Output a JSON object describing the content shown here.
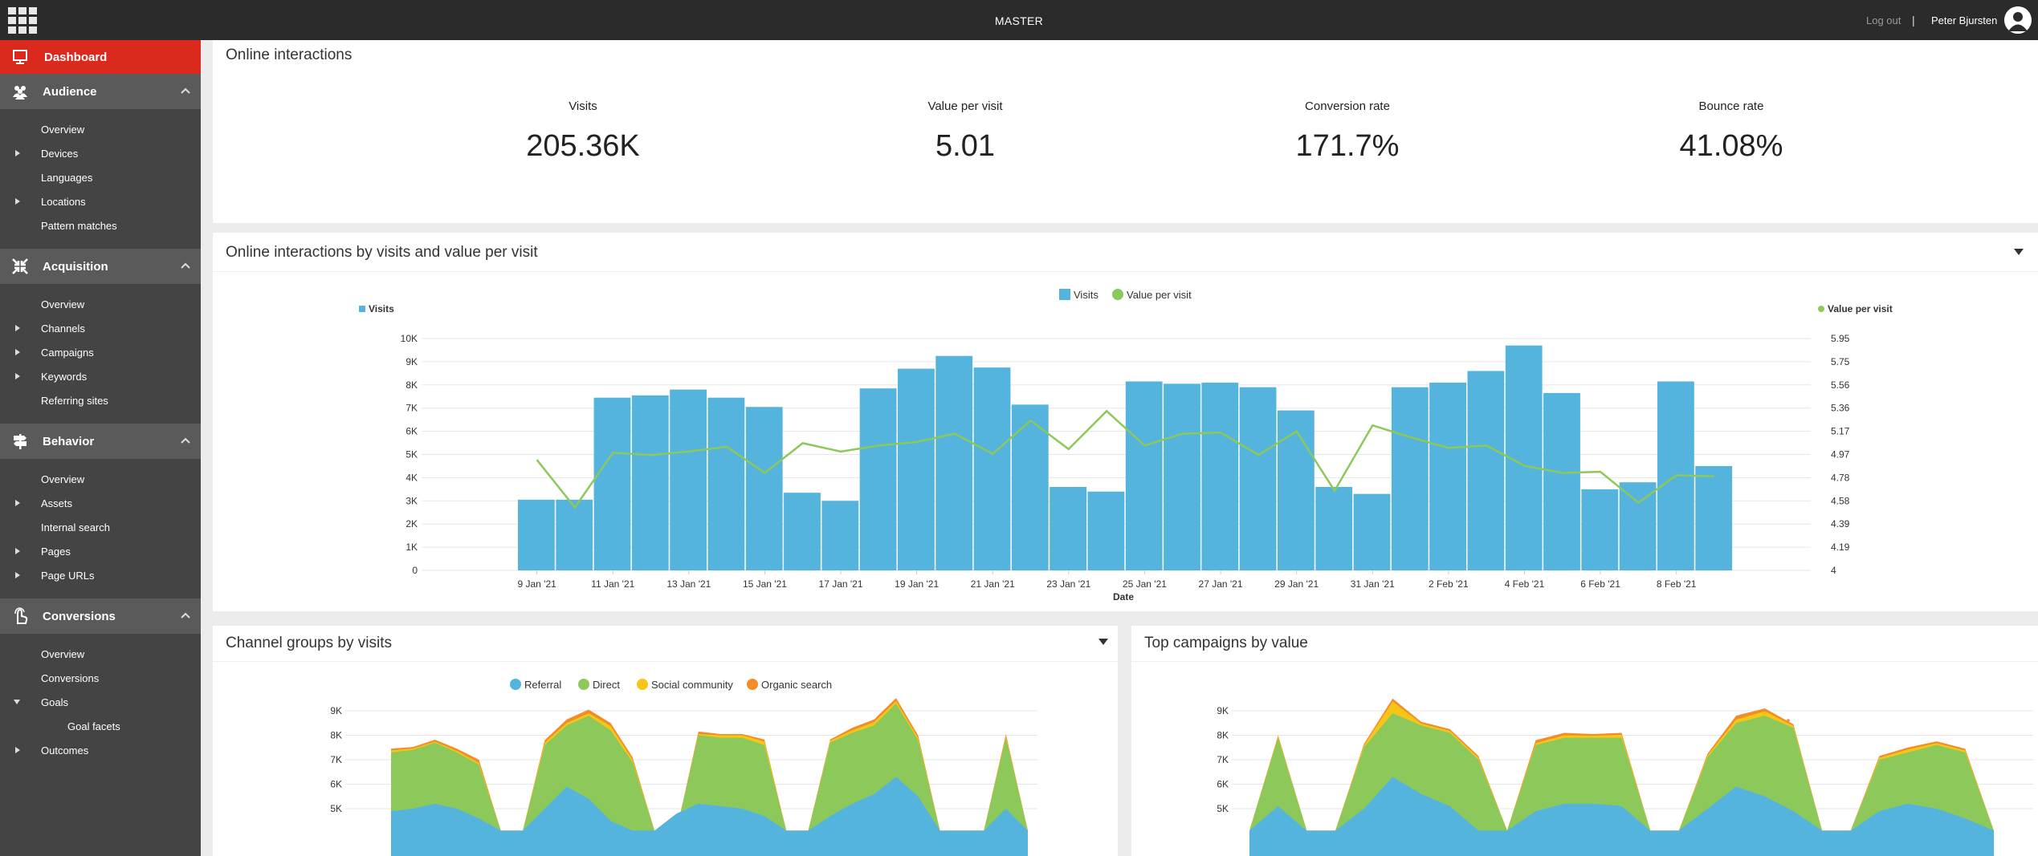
{
  "topbar": {
    "database": "MASTER",
    "logout": "Log out",
    "separator": "|",
    "user": "Peter Bjursten"
  },
  "sidebar": {
    "dashboard": "Dashboard",
    "sections": [
      {
        "title": "Audience",
        "icon": "people-icon",
        "items": [
          {
            "label": "Overview",
            "expander": ""
          },
          {
            "label": "Devices",
            "expander": "closed"
          },
          {
            "label": "Languages",
            "expander": ""
          },
          {
            "label": "Locations",
            "expander": "closed"
          },
          {
            "label": "Pattern matches",
            "expander": ""
          }
        ]
      },
      {
        "title": "Acquisition",
        "icon": "arrows-icon",
        "items": [
          {
            "label": "Overview",
            "expander": ""
          },
          {
            "label": "Channels",
            "expander": "closed"
          },
          {
            "label": "Campaigns",
            "expander": "closed"
          },
          {
            "label": "Keywords",
            "expander": "closed"
          },
          {
            "label": "Referring sites",
            "expander": ""
          }
        ]
      },
      {
        "title": "Behavior",
        "icon": "signpost-icon",
        "items": [
          {
            "label": "Overview",
            "expander": ""
          },
          {
            "label": "Assets",
            "expander": "closed"
          },
          {
            "label": "Internal search",
            "expander": ""
          },
          {
            "label": "Pages",
            "expander": "closed"
          },
          {
            "label": "Page URLs",
            "expander": "closed"
          }
        ]
      },
      {
        "title": "Conversions",
        "icon": "hand-icon",
        "items": [
          {
            "label": "Overview",
            "expander": ""
          },
          {
            "label": "Conversions",
            "expander": ""
          },
          {
            "label": "Goals",
            "expander": "open"
          },
          {
            "label": "Goal facets",
            "expander": "",
            "sub": true
          },
          {
            "label": "Outcomes",
            "expander": "closed"
          }
        ]
      }
    ]
  },
  "online": {
    "title": "Online interactions",
    "kpis": [
      {
        "label": "Visits",
        "value": "205.36K"
      },
      {
        "label": "Value per visit",
        "value": "5.01"
      },
      {
        "label": "Conversion rate",
        "value": "171.7%"
      },
      {
        "label": "Bounce rate",
        "value": "41.08%"
      }
    ]
  },
  "visits_panel": {
    "title": "Online interactions by visits and value per visit"
  },
  "channels_panel": {
    "title": "Channel groups by visits"
  },
  "campaigns_panel": {
    "title": "Top campaigns by value"
  },
  "colors": {
    "visits": "#55b4dd",
    "value_per_visit": "#8cc85a",
    "referral": "#55b4dd",
    "direct": "#8cc85a",
    "social": "#f5c518",
    "organic": "#f28c28",
    "accent": "#dc291e"
  },
  "chart_data": [
    {
      "type": "bar",
      "title": "Online interactions by visits and value per visit",
      "xlabel": "Date",
      "legend": [
        "Visits",
        "Value per visit"
      ],
      "y_left_label": "Visits",
      "y_right_label": "Value per visit",
      "y_left_ticks": [
        "0",
        "1K",
        "2K",
        "3K",
        "4K",
        "5K",
        "6K",
        "7K",
        "8K",
        "9K",
        "10K"
      ],
      "y_right_ticks": [
        "4",
        "4.19",
        "4.39",
        "4.58",
        "4.78",
        "4.97",
        "5.17",
        "5.36",
        "5.56",
        "5.75",
        "5.95"
      ],
      "ylim_left": [
        0,
        10000
      ],
      "ylim_right": [
        4,
        5.95
      ],
      "x_tick_labels": [
        "9 Jan '21",
        "11 Jan '21",
        "13 Jan '21",
        "15 Jan '21",
        "17 Jan '21",
        "19 Jan '21",
        "21 Jan '21",
        "23 Jan '21",
        "25 Jan '21",
        "27 Jan '21",
        "29 Jan '21",
        "31 Jan '21",
        "2 Feb '21",
        "4 Feb '21",
        "6 Feb '21",
        "8 Feb '21"
      ],
      "categories": [
        "9 Jan '21",
        "10 Jan '21",
        "11 Jan '21",
        "12 Jan '21",
        "13 Jan '21",
        "14 Jan '21",
        "15 Jan '21",
        "16 Jan '21",
        "17 Jan '21",
        "18 Jan '21",
        "19 Jan '21",
        "20 Jan '21",
        "21 Jan '21",
        "22 Jan '21",
        "23 Jan '21",
        "24 Jan '21",
        "25 Jan '21",
        "26 Jan '21",
        "27 Jan '21",
        "28 Jan '21",
        "29 Jan '21",
        "30 Jan '21",
        "31 Jan '21",
        "1 Feb '21",
        "2 Feb '21",
        "3 Feb '21",
        "4 Feb '21",
        "5 Feb '21",
        "6 Feb '21",
        "7 Feb '21",
        "8 Feb '21",
        "9 Feb '21"
      ],
      "series": [
        {
          "name": "Visits",
          "axis": "left",
          "kind": "bar",
          "values": [
            3050,
            3050,
            7450,
            7550,
            7800,
            7450,
            7050,
            3350,
            3000,
            7850,
            8700,
            9250,
            8750,
            7150,
            3600,
            3400,
            8150,
            8050,
            8100,
            7900,
            6900,
            3600,
            3300,
            7900,
            8100,
            8600,
            9700,
            7650,
            3500,
            3800,
            8150,
            4500
          ]
        },
        {
          "name": "Value per visit",
          "axis": "right",
          "kind": "line",
          "values": [
            4.93,
            4.53,
            4.99,
            4.97,
            5.0,
            5.04,
            4.82,
            5.07,
            5.0,
            5.05,
            5.08,
            5.15,
            4.98,
            5.26,
            5.02,
            5.34,
            5.05,
            5.15,
            5.16,
            4.97,
            5.17,
            4.67,
            5.22,
            5.12,
            5.03,
            5.05,
            4.88,
            4.82,
            4.83,
            4.57,
            4.8,
            4.79
          ]
        }
      ]
    },
    {
      "type": "area",
      "title": "Channel groups by visits",
      "legend": [
        "Referral",
        "Direct",
        "Social community",
        "Organic search"
      ],
      "y_ticks": [
        "5K",
        "6K",
        "7K",
        "8K",
        "9K"
      ],
      "ylim": [
        4000,
        10000
      ],
      "series": [
        {
          "name": "Referral",
          "values": [
            4900,
            5000,
            5200,
            5000,
            4600,
            4100,
            4100,
            5000,
            5900,
            5400,
            4500,
            4100,
            4100,
            4800,
            5200,
            5100,
            5000,
            4700,
            4100,
            4100,
            4700,
            5200,
            5600,
            6300,
            5500,
            4100,
            4100,
            4100,
            5000,
            4100
          ]
        },
        {
          "name": "Direct",
          "values": [
            7300,
            7400,
            7700,
            7300,
            6800,
            4100,
            4100,
            7600,
            8400,
            8800,
            8200,
            6900,
            4100,
            4100,
            8000,
            7900,
            7900,
            7600,
            4100,
            4100,
            7700,
            8100,
            8400,
            9300,
            7800,
            4100,
            4100,
            4100,
            7900,
            4100
          ]
        },
        {
          "name": "Social community",
          "values": [
            7380,
            7460,
            7740,
            7360,
            6880,
            4100,
            4100,
            7700,
            8500,
            8900,
            8380,
            7000,
            4100,
            4100,
            8050,
            8000,
            8000,
            7740,
            4100,
            4100,
            7780,
            8200,
            8540,
            9400,
            7900,
            4100,
            4100,
            4100,
            7960,
            4100
          ]
        },
        {
          "name": "Organic search",
          "values": [
            7450,
            7520,
            7820,
            7450,
            7000,
            4100,
            4100,
            7800,
            8650,
            9050,
            8500,
            7100,
            4100,
            4100,
            8150,
            8050,
            8050,
            7830,
            4100,
            4100,
            7830,
            8300,
            8650,
            9520,
            8000,
            4100,
            4100,
            4100,
            8050,
            4100
          ]
        }
      ]
    },
    {
      "type": "area",
      "title": "Top campaigns by value",
      "y_ticks": [
        "5K",
        "6K",
        "7K",
        "8K",
        "9K"
      ],
      "ylim": [
        4000,
        10000
      ],
      "series": [
        {
          "name": "Referral",
          "values": [
            4100,
            5100,
            4100,
            4100,
            5000,
            6300,
            5600,
            5100,
            4100,
            4100,
            4900,
            5200,
            5200,
            5100,
            4100,
            4100,
            5000,
            5900,
            5500,
            4900,
            4100,
            4100,
            4900,
            5200,
            5000,
            4600,
            4100
          ]
        },
        {
          "name": "Direct",
          "values": [
            4100,
            7900,
            4100,
            4100,
            7500,
            8900,
            8400,
            8100,
            7000,
            4100,
            7600,
            7900,
            7900,
            7900,
            4100,
            4100,
            7100,
            8500,
            8800,
            8300,
            4100,
            4100,
            7000,
            7300,
            7600,
            7300,
            4100
          ]
        },
        {
          "name": "Social community",
          "values": [
            4100,
            7950,
            4100,
            4100,
            7580,
            9380,
            8480,
            8180,
            7080,
            4100,
            7680,
            8000,
            7980,
            8020,
            4100,
            4100,
            7180,
            8640,
            8980,
            8380,
            4100,
            4100,
            7080,
            7420,
            7680,
            7380,
            4100
          ]
        },
        {
          "name": "Organic search",
          "values": [
            4100,
            8000,
            4100,
            4100,
            7650,
            9500,
            8550,
            8250,
            7150,
            4100,
            7800,
            8100,
            8050,
            8100,
            4100,
            4100,
            7250,
            8800,
            9100,
            8450,
            4100,
            4100,
            7150,
            7500,
            7750,
            7450,
            4100
          ]
        }
      ]
    }
  ]
}
